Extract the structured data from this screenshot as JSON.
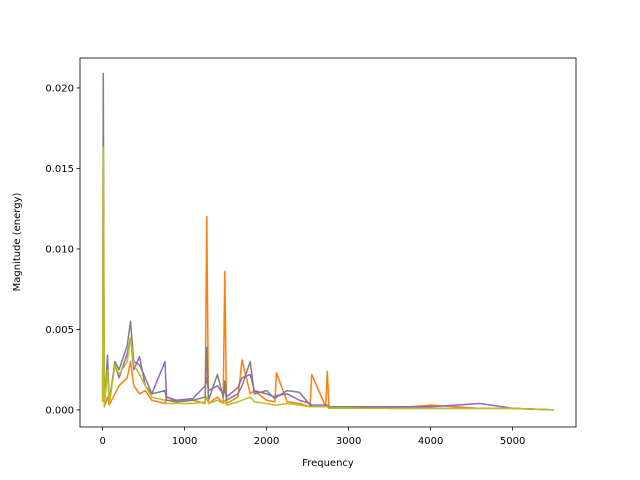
{
  "chart_data": {
    "type": "line",
    "x_label": "Frequency",
    "y_label": "Magnitude (energy)",
    "x": [
      0,
      8,
      20,
      60,
      80,
      150,
      200,
      300,
      340,
      380,
      450,
      520,
      600,
      760,
      780,
      900,
      1100,
      1250,
      1270,
      1290,
      1400,
      1470,
      1490,
      1510,
      1650,
      1700,
      1800,
      1850,
      2000,
      2100,
      2120,
      2250,
      2400,
      2530,
      2550,
      2720,
      2740,
      2760,
      3000,
      3500,
      4000,
      4600,
      5000,
      5500
    ],
    "series": [
      {
        "color": "#ff7f0e",
        "values": [
          0.0005,
          0.009,
          0.0002,
          0.0008,
          0.0003,
          0.001,
          0.0015,
          0.002,
          0.003,
          0.0015,
          0.001,
          0.0012,
          0.0006,
          0.0004,
          0.0008,
          0.0005,
          0.0006,
          0.0004,
          0.012,
          0.0004,
          0.0008,
          0.0004,
          0.0086,
          0.0004,
          0.0008,
          0.0031,
          0.001,
          0.0012,
          0.0006,
          0.0005,
          0.0023,
          0.0005,
          0.0004,
          0.0002,
          0.0022,
          0.0002,
          0.0024,
          0.0002,
          0.0002,
          0.0001,
          0.0003,
          0.0001,
          0.0001,
          0.0
        ]
      },
      {
        "color": "#9467bd",
        "values": [
          0.001,
          0.015,
          0.0003,
          0.0034,
          0.0005,
          0.0028,
          0.002,
          0.0035,
          0.0045,
          0.0025,
          0.0033,
          0.0015,
          0.001,
          0.003,
          0.0008,
          0.0006,
          0.0007,
          0.0015,
          0.002,
          0.0012,
          0.0015,
          0.001,
          0.0012,
          0.0008,
          0.0014,
          0.002,
          0.0022,
          0.0012,
          0.001,
          0.0008,
          0.0009,
          0.001,
          0.0006,
          0.0004,
          0.0003,
          0.0003,
          0.0003,
          0.0002,
          0.0002,
          0.0002,
          0.0002,
          0.0004,
          0.0001,
          0.0
        ]
      },
      {
        "color": "#7f7f7f",
        "values": [
          0.001,
          0.0209,
          0.0003,
          0.003,
          0.0004,
          0.003,
          0.0025,
          0.004,
          0.0055,
          0.003,
          0.0028,
          0.002,
          0.001,
          0.0012,
          0.0006,
          0.0005,
          0.0006,
          0.0008,
          0.0039,
          0.0006,
          0.0022,
          0.0008,
          0.0018,
          0.0006,
          0.001,
          0.0015,
          0.003,
          0.001,
          0.0012,
          0.0007,
          0.0008,
          0.0012,
          0.0011,
          0.0003,
          0.0002,
          0.0002,
          0.0002,
          0.0002,
          0.0002,
          0.0001,
          0.0001,
          0.0001,
          0.0001,
          0.0
        ]
      },
      {
        "color": "#bcbd22",
        "values": [
          0.0005,
          0.0163,
          0.0002,
          0.0025,
          0.0003,
          0.0028,
          0.0022,
          0.003,
          0.0045,
          0.0028,
          0.0022,
          0.0015,
          0.0008,
          0.0006,
          0.0004,
          0.0004,
          0.0004,
          0.0005,
          0.0008,
          0.0004,
          0.0006,
          0.0004,
          0.0006,
          0.0003,
          0.0005,
          0.0006,
          0.0008,
          0.0005,
          0.0004,
          0.0003,
          0.0003,
          0.0004,
          0.0003,
          0.0002,
          0.0002,
          0.0002,
          0.0002,
          0.0001,
          0.0001,
          0.0001,
          0.0001,
          0.0001,
          0.0001,
          0.0
        ]
      }
    ],
    "xlim": [
      -276,
      5773
    ],
    "ylim": [
      -0.00106,
      0.02186
    ],
    "xticks": [
      0,
      1000,
      2000,
      3000,
      4000,
      5000
    ],
    "yticks": [
      {
        "value": 0,
        "label": "0.000"
      },
      {
        "value": 0.005,
        "label": "0.005"
      },
      {
        "value": 0.01,
        "label": "0.010"
      },
      {
        "value": 0.015,
        "label": "0.015"
      },
      {
        "value": 0.02,
        "label": "0.020"
      }
    ],
    "grid": false
  }
}
